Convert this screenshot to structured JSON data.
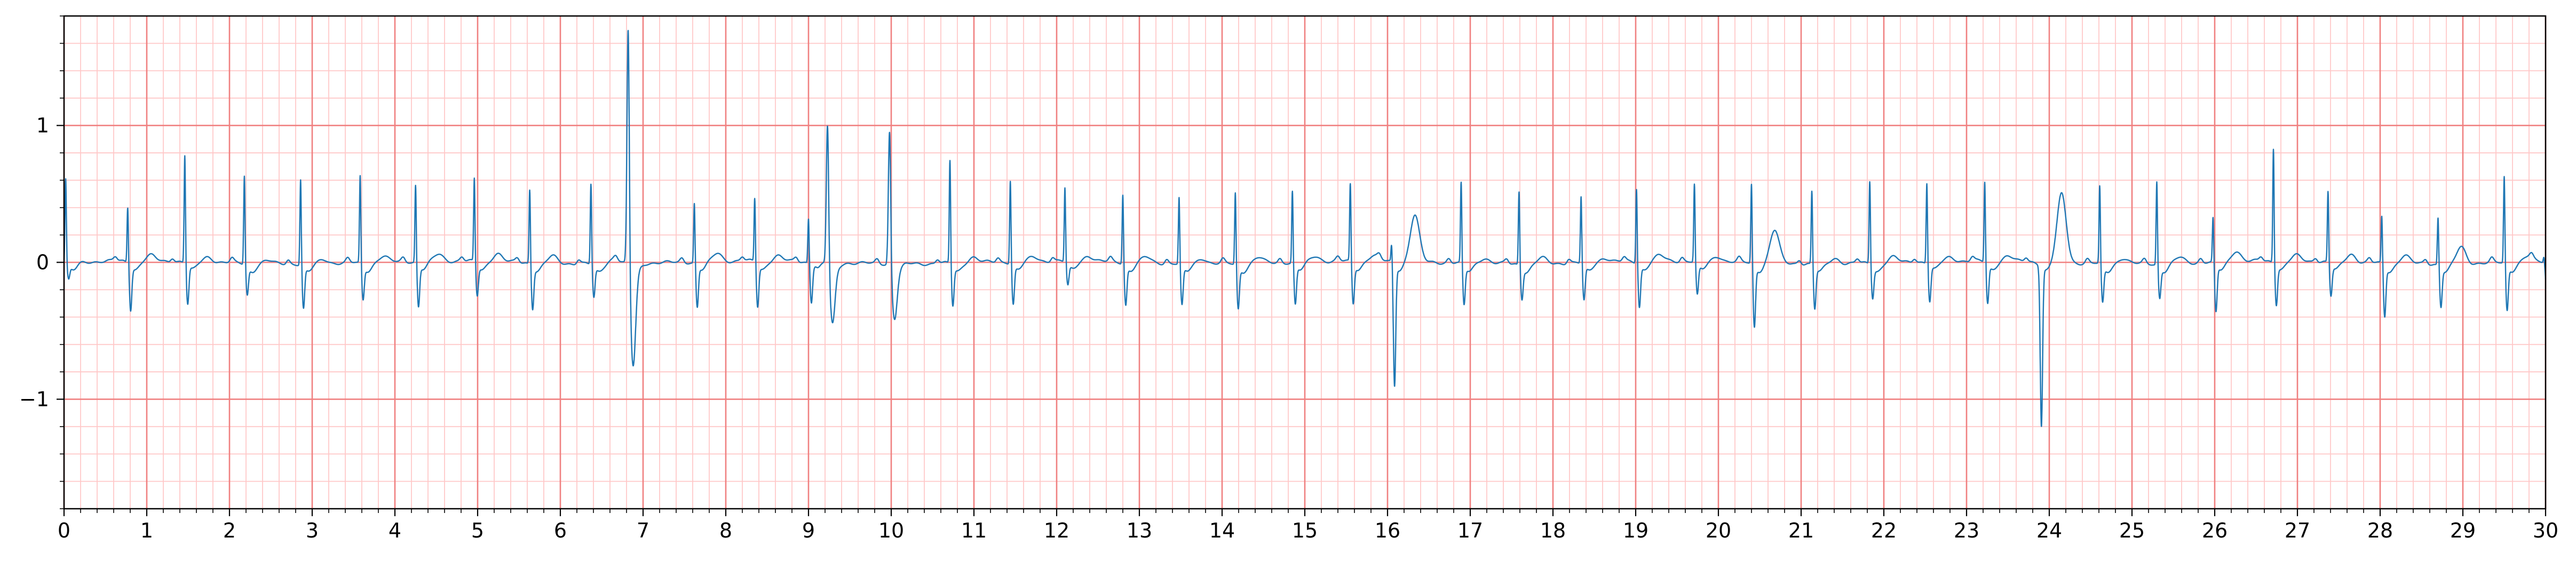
{
  "chart_data": {
    "type": "line",
    "title": "",
    "xlabel": "",
    "ylabel": "",
    "xlim": [
      0,
      30
    ],
    "ylim": [
      -1.8,
      1.8
    ],
    "x_ticks": [
      0,
      1,
      2,
      3,
      4,
      5,
      6,
      7,
      8,
      9,
      10,
      11,
      12,
      13,
      14,
      15,
      16,
      17,
      18,
      19,
      20,
      21,
      22,
      23,
      24,
      25,
      26,
      27,
      28,
      29,
      30
    ],
    "x_tick_labels": [
      "0",
      "1",
      "2",
      "3",
      "4",
      "5",
      "6",
      "7",
      "8",
      "9",
      "10",
      "11",
      "12",
      "13",
      "14",
      "15",
      "16",
      "17",
      "18",
      "19",
      "20",
      "21",
      "22",
      "23",
      "24",
      "25",
      "26",
      "27",
      "28",
      "29",
      "30"
    ],
    "y_ticks": [
      -1,
      0,
      1
    ],
    "y_tick_labels": [
      "−1",
      "0",
      "1"
    ],
    "grid": true,
    "grid_major": {
      "x_step": 1,
      "y_step": 1,
      "color": "#f08080"
    },
    "grid_minor": {
      "x_step": 0.2,
      "y_step": 0.2,
      "color": "#ffc8c8"
    },
    "line_color": "#1f77b4",
    "series": [
      {
        "beats": [
          {
            "t": 0.02,
            "amp": 0.62,
            "s": -0.1,
            "tw": 0.0
          },
          {
            "t": 0.77,
            "amp": 0.42,
            "s": -0.32,
            "tw": 0.04
          },
          {
            "t": 1.46,
            "amp": 0.8,
            "s": -0.28,
            "tw": 0.04
          },
          {
            "t": 2.18,
            "amp": 0.66,
            "s": -0.2,
            "tw": 0.02
          },
          {
            "t": 2.86,
            "amp": 0.64,
            "s": -0.3,
            "tw": 0.03
          },
          {
            "t": 3.58,
            "amp": 0.65,
            "s": -0.24,
            "tw": 0.04
          },
          {
            "t": 4.25,
            "amp": 0.58,
            "s": -0.3,
            "tw": 0.05
          },
          {
            "t": 4.96,
            "amp": 0.62,
            "s": -0.22,
            "tw": 0.06
          },
          {
            "t": 5.63,
            "amp": 0.56,
            "s": -0.3,
            "tw": 0.05
          },
          {
            "t": 6.37,
            "amp": 0.6,
            "s": -0.22,
            "tw": 0.04
          },
          {
            "t": 6.82,
            "amp": 1.8,
            "s": -0.7,
            "tw": 0.0,
            "wide": true
          },
          {
            "t": 7.62,
            "amp": 0.45,
            "s": -0.3,
            "tw": 0.06
          },
          {
            "t": 8.35,
            "amp": 0.48,
            "s": -0.3,
            "tw": 0.04
          },
          {
            "t": 9.0,
            "amp": 0.34,
            "s": -0.26,
            "tw": 0.02
          },
          {
            "t": 9.23,
            "amp": 1.05,
            "s": -0.42,
            "tw": 0.0,
            "wide": true
          },
          {
            "t": 9.98,
            "amp": 1.02,
            "s": -0.35,
            "tw": 0.0,
            "wide": true
          },
          {
            "t": 10.71,
            "amp": 0.77,
            "s": -0.28,
            "tw": 0.04
          },
          {
            "t": 11.44,
            "amp": 0.62,
            "s": -0.28,
            "tw": 0.03
          },
          {
            "t": 12.1,
            "amp": 0.55,
            "s": -0.15,
            "tw": 0.04
          },
          {
            "t": 12.8,
            "amp": 0.52,
            "s": -0.28,
            "tw": 0.04
          },
          {
            "t": 13.48,
            "amp": 0.5,
            "s": -0.28,
            "tw": 0.04
          },
          {
            "t": 14.16,
            "amp": 0.54,
            "s": -0.3,
            "tw": 0.04
          },
          {
            "t": 14.85,
            "amp": 0.54,
            "s": -0.28,
            "tw": 0.04
          },
          {
            "t": 15.55,
            "amp": 0.58,
            "s": -0.28,
            "tw": 0.04
          },
          {
            "t": 16.05,
            "amp": 0.15,
            "s": -0.88,
            "tw": 0.34
          },
          {
            "t": 16.89,
            "amp": 0.6,
            "s": -0.28,
            "tw": 0.04
          },
          {
            "t": 17.59,
            "amp": 0.55,
            "s": -0.22,
            "tw": 0.04
          },
          {
            "t": 18.34,
            "amp": 0.5,
            "s": -0.25,
            "tw": 0.03
          },
          {
            "t": 19.01,
            "amp": 0.56,
            "s": -0.3,
            "tw": 0.04
          },
          {
            "t": 19.71,
            "amp": 0.58,
            "s": -0.22,
            "tw": 0.04
          },
          {
            "t": 20.4,
            "amp": 0.6,
            "s": -0.44,
            "tw": 0.24
          },
          {
            "t": 21.13,
            "amp": 0.55,
            "s": -0.3,
            "tw": 0.04
          },
          {
            "t": 21.83,
            "amp": 0.62,
            "s": -0.22,
            "tw": 0.04
          },
          {
            "t": 22.52,
            "amp": 0.6,
            "s": -0.26,
            "tw": 0.03
          },
          {
            "t": 23.22,
            "amp": 0.6,
            "s": -0.28,
            "tw": 0.04
          },
          {
            "t": 23.87,
            "amp": 0.0,
            "s": -1.16,
            "tw": 0.5
          },
          {
            "t": 24.61,
            "amp": 0.58,
            "s": -0.26,
            "tw": 0.04
          },
          {
            "t": 25.3,
            "amp": 0.62,
            "s": -0.22,
            "tw": 0.04
          },
          {
            "t": 25.98,
            "amp": 0.34,
            "s": -0.34,
            "tw": 0.08
          },
          {
            "t": 26.71,
            "amp": 0.85,
            "s": -0.28,
            "tw": 0.04
          },
          {
            "t": 27.37,
            "amp": 0.53,
            "s": -0.22,
            "tw": 0.06
          },
          {
            "t": 28.02,
            "amp": 0.36,
            "s": -0.36,
            "tw": 0.06
          },
          {
            "t": 28.7,
            "amp": 0.36,
            "s": -0.28,
            "tw": 0.12
          },
          {
            "t": 29.5,
            "amp": 0.65,
            "s": -0.32,
            "tw": 0.04
          },
          {
            "t": 29.98,
            "amp": 0.05,
            "s": -0.2,
            "tw": 0.0
          }
        ]
      }
    ]
  }
}
